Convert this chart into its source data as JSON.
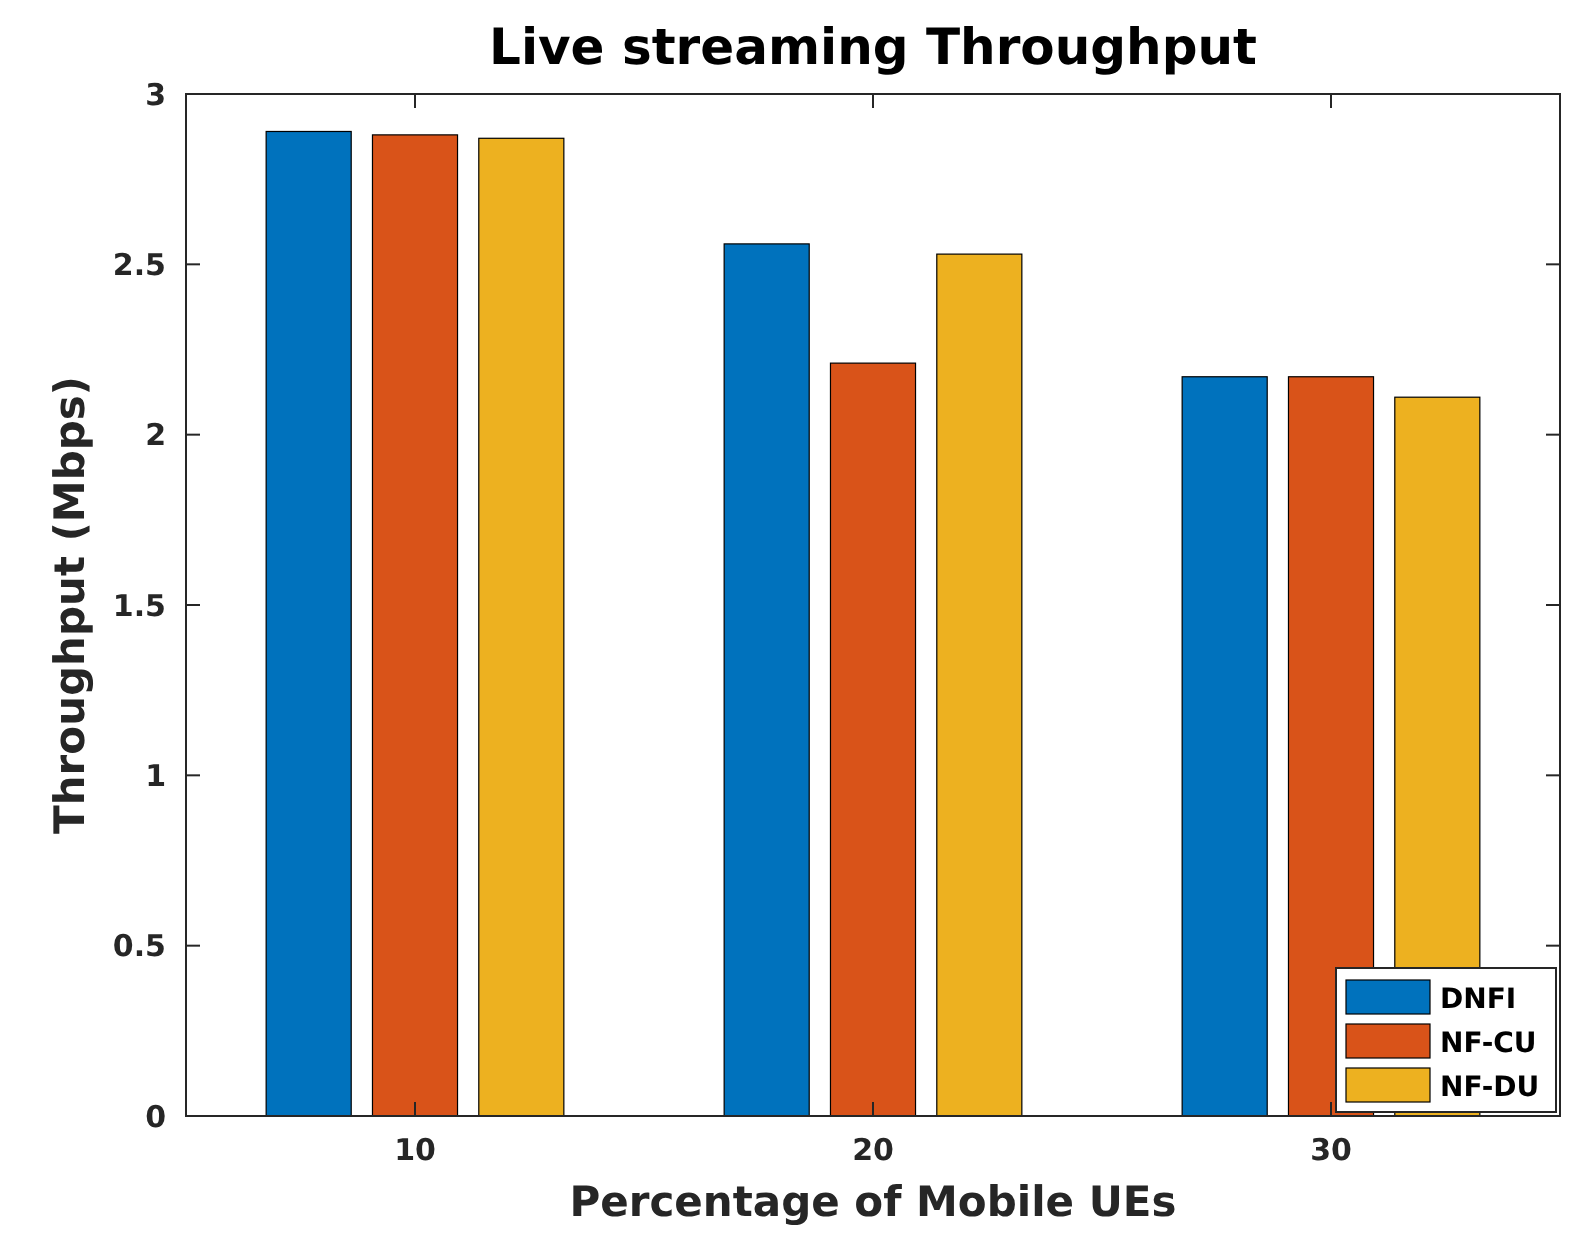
{
  "chart_data": {
    "type": "bar",
    "title": "Live streaming Throughput",
    "xlabel": "Percentage of Mobile UEs",
    "ylabel": "Throughput (Mbps)",
    "categories": [
      "10",
      "20",
      "30"
    ],
    "series": [
      {
        "name": "DNFI",
        "color": "#0072bd",
        "values": [
          2.89,
          2.56,
          2.17
        ]
      },
      {
        "name": "NF-CU",
        "color": "#d95319",
        "values": [
          2.88,
          2.21,
          2.17
        ]
      },
      {
        "name": "NF-DU",
        "color": "#edb120",
        "values": [
          2.87,
          2.53,
          2.11
        ]
      }
    ],
    "ylim": [
      0,
      3
    ],
    "yticks": [
      0,
      0.5,
      1,
      1.5,
      2,
      2.5,
      3
    ],
    "grid": false,
    "legend": "bottom right"
  }
}
